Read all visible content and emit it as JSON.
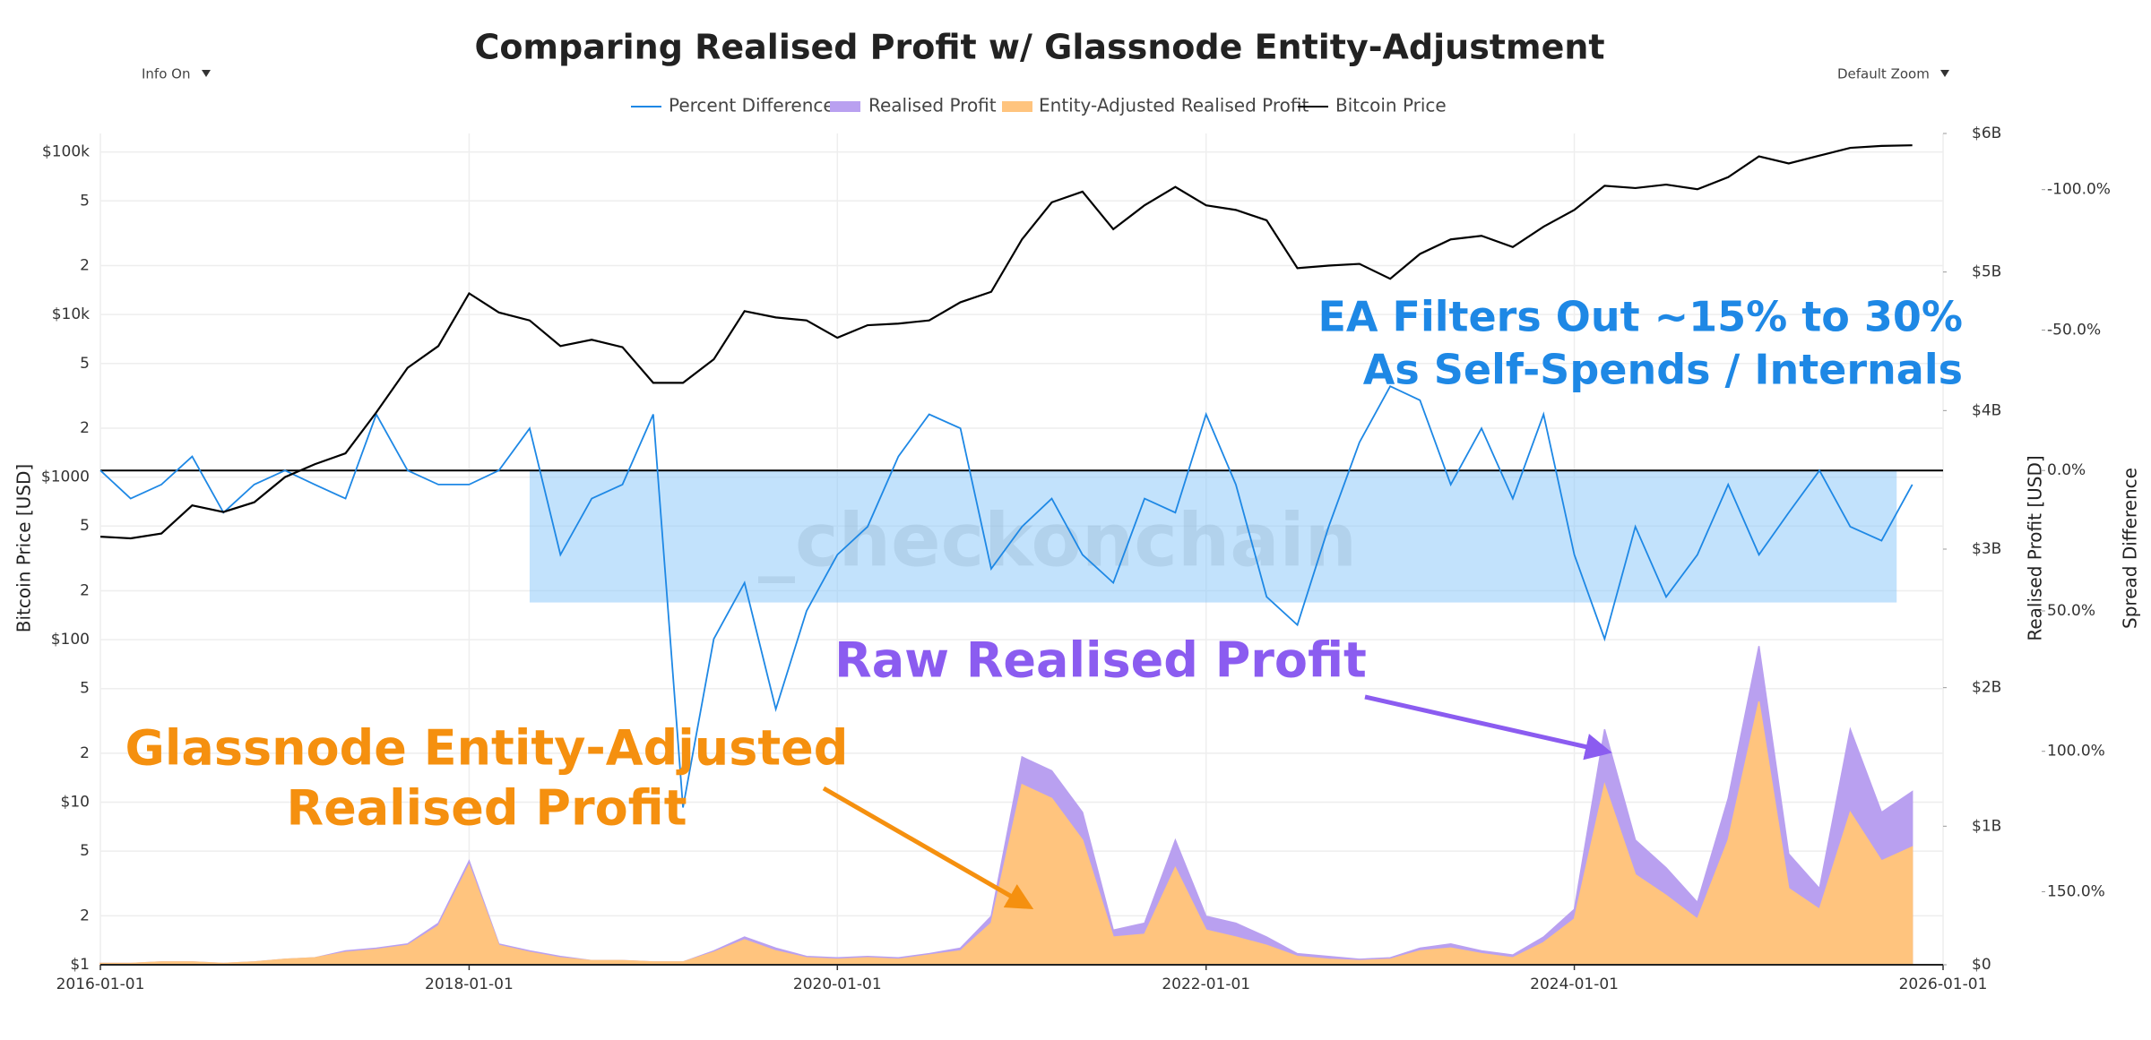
{
  "chart_data": {
    "type": "line",
    "title": "Comparing Realised Profit w/ Glassnode Entity-Adjustment",
    "controls": {
      "info": "Info On",
      "zoom": "Default Zoom"
    },
    "x": [
      "2016-01-01",
      "2016-03-01",
      "2016-05-01",
      "2016-07-01",
      "2016-09-01",
      "2016-11-01",
      "2017-01-01",
      "2017-03-01",
      "2017-05-01",
      "2017-07-01",
      "2017-09-01",
      "2017-11-01",
      "2018-01-01",
      "2018-03-01",
      "2018-05-01",
      "2018-07-01",
      "2018-09-01",
      "2018-11-01",
      "2019-01-01",
      "2019-03-01",
      "2019-05-01",
      "2019-07-01",
      "2019-09-01",
      "2019-11-01",
      "2020-01-01",
      "2020-03-01",
      "2020-05-01",
      "2020-07-01",
      "2020-09-01",
      "2020-11-01",
      "2021-01-01",
      "2021-03-01",
      "2021-05-01",
      "2021-07-01",
      "2021-09-01",
      "2021-11-01",
      "2022-01-01",
      "2022-03-01",
      "2022-05-01",
      "2022-07-01",
      "2022-09-01",
      "2022-11-01",
      "2023-01-01",
      "2023-03-01",
      "2023-05-01",
      "2023-07-01",
      "2023-09-01",
      "2023-11-01",
      "2024-01-01",
      "2024-03-01",
      "2024-05-01",
      "2024-07-01",
      "2024-09-01",
      "2024-11-01",
      "2025-01-01",
      "2025-03-01",
      "2025-05-01",
      "2025-07-01",
      "2025-09-01",
      "2025-11-01"
    ],
    "series": [
      {
        "name": "Percent Difference",
        "color": "#1e88e5",
        "kind": "line",
        "axis": "y3",
        "values": [
          0,
          10,
          5,
          -5,
          15,
          5,
          0,
          5,
          10,
          -20,
          0,
          5,
          5,
          0,
          -15,
          30,
          10,
          5,
          -20,
          120,
          60,
          40,
          85,
          50,
          30,
          20,
          -5,
          -20,
          -15,
          35,
          20,
          10,
          30,
          40,
          10,
          15,
          -20,
          5,
          45,
          55,
          20,
          -10,
          -30,
          -25,
          5,
          -15,
          10,
          -20,
          30,
          60,
          20,
          45,
          30,
          5,
          30,
          15,
          0,
          20,
          25,
          5
        ]
      },
      {
        "name": "Realised Profit",
        "color": "#b9a0f0",
        "kind": "area",
        "axis": "y2",
        "values": [
          0.01,
          0.01,
          0.02,
          0.02,
          0.01,
          0.02,
          0.04,
          0.05,
          0.1,
          0.12,
          0.15,
          0.3,
          0.75,
          0.15,
          0.1,
          0.06,
          0.03,
          0.03,
          0.02,
          0.02,
          0.1,
          0.2,
          0.12,
          0.06,
          0.05,
          0.06,
          0.05,
          0.08,
          0.12,
          0.35,
          1.5,
          1.4,
          1.1,
          0.25,
          0.3,
          0.9,
          0.35,
          0.3,
          0.2,
          0.08,
          0.06,
          0.04,
          0.05,
          0.12,
          0.15,
          0.1,
          0.07,
          0.2,
          0.4,
          1.7,
          0.9,
          0.7,
          0.45,
          1.2,
          2.3,
          0.8,
          0.55,
          1.7,
          1.1,
          1.25
        ]
      },
      {
        "name": "Entity-Adjusted Realised Profit",
        "color": "#ffc47e",
        "kind": "area",
        "axis": "y2",
        "values": [
          0.01,
          0.01,
          0.02,
          0.02,
          0.01,
          0.02,
          0.04,
          0.05,
          0.09,
          0.11,
          0.14,
          0.28,
          0.72,
          0.14,
          0.09,
          0.05,
          0.03,
          0.03,
          0.02,
          0.02,
          0.09,
          0.18,
          0.1,
          0.05,
          0.04,
          0.05,
          0.04,
          0.07,
          0.1,
          0.3,
          1.3,
          1.2,
          0.9,
          0.2,
          0.22,
          0.7,
          0.25,
          0.2,
          0.14,
          0.06,
          0.04,
          0.03,
          0.04,
          0.1,
          0.12,
          0.08,
          0.05,
          0.16,
          0.33,
          1.3,
          0.65,
          0.5,
          0.33,
          0.9,
          1.9,
          0.55,
          0.4,
          1.1,
          0.75,
          0.85
        ]
      },
      {
        "name": "Bitcoin Price",
        "color": "#000000",
        "kind": "line",
        "axis": "y",
        "values": [
          430,
          420,
          450,
          670,
          610,
          700,
          1000,
          1200,
          1400,
          2500,
          4700,
          6400,
          13500,
          10300,
          9200,
          6400,
          7000,
          6300,
          3800,
          3800,
          5300,
          10500,
          9600,
          9200,
          7200,
          8600,
          8800,
          9200,
          11900,
          13800,
          29000,
          49000,
          57000,
          33500,
          47000,
          61000,
          47000,
          44000,
          38000,
          19300,
          20000,
          20500,
          16600,
          23600,
          29000,
          30500,
          26000,
          34700,
          44000,
          62000,
          60000,
          63000,
          59000,
          70000,
          94000,
          85000,
          95000,
          106000,
          109000,
          110000
        ]
      }
    ],
    "xlim": [
      "2016-01-01",
      "2026-01-01"
    ],
    "xticks": [
      "2016-01-01",
      "2018-01-01",
      "2020-01-01",
      "2022-01-01",
      "2024-01-01",
      "2026-01-01"
    ],
    "ylabel": "Bitcoin Price [USD]",
    "log_y": true,
    "ylim": [
      1,
      130000
    ],
    "yticks": [
      {
        "value": 1,
        "label": "$1"
      },
      2,
      5,
      {
        "value": 10,
        "label": "$10"
      },
      {
        "value": 20,
        "label": "2"
      },
      {
        "value": 50,
        "label": "5"
      },
      {
        "value": 100,
        "label": "$100"
      },
      {
        "value": 200,
        "label": "2"
      },
      {
        "value": 500,
        "label": "5"
      },
      {
        "value": 1000,
        "label": "$1000"
      },
      {
        "value": 2000,
        "label": "2"
      },
      {
        "value": 5000,
        "label": "5"
      },
      {
        "value": 10000,
        "label": "$10k"
      },
      {
        "value": 20000,
        "label": "2"
      },
      {
        "value": 50000,
        "label": "5"
      },
      {
        "value": 100000,
        "label": "$100k"
      }
    ],
    "y2label": "Realised Profit [USD]",
    "y2lim": [
      0,
      6
    ],
    "y2ticks": [
      {
        "value": 0,
        "label": "$0"
      },
      {
        "value": 1,
        "label": "$1B"
      },
      {
        "value": 2,
        "label": "$2B"
      },
      {
        "value": 3,
        "label": "$3B"
      },
      {
        "value": 4,
        "label": "$4B"
      },
      {
        "value": 5,
        "label": "$5B"
      },
      {
        "value": 6,
        "label": "$6B"
      }
    ],
    "y3label": "Spread Difference",
    "y3lim": [
      176,
      -120
    ],
    "y3ticks": [
      {
        "value": -100,
        "label": "-100.0%"
      },
      {
        "value": -50,
        "label": "-50.0%"
      },
      {
        "value": 0,
        "label": "0.0%"
      },
      {
        "value": 50,
        "label": "50.0%"
      },
      {
        "value": 100,
        "label": "100.0%"
      },
      {
        "value": 150,
        "label": "150.0%"
      }
    ],
    "hline": 0,
    "band": {
      "x": [
        "2018-05-01",
        "2025-10-01"
      ],
      "y": [
        0,
        47
      ],
      "color": "#90caf9"
    },
    "grid": true,
    "watermark": "_checkonchain",
    "annotations": [
      {
        "lines": [
          "EA Filters Out ~15% to 30%",
          "As Self-Spends / Internals"
        ],
        "color": "#1e88e5"
      },
      {
        "lines": [
          "Raw Realised Profit"
        ],
        "color": "#8b5cf0"
      },
      {
        "lines": [
          "Glassnode Entity-Adjusted",
          "Realised Profit"
        ],
        "color": "#f5900f"
      }
    ]
  }
}
